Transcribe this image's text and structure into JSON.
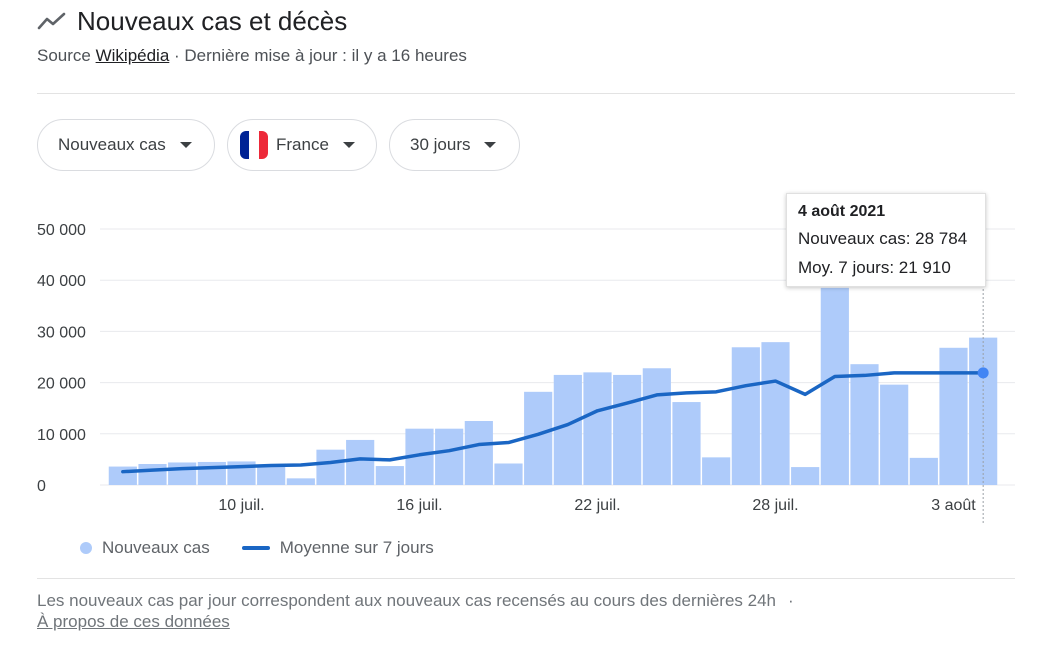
{
  "header": {
    "title": "Nouveaux cas et décès",
    "source_prefix": "Source ",
    "source_link": "Wikipédia",
    "source_suffix": " · Dernière mise à jour : il y a 16 heures"
  },
  "filters": [
    {
      "label": "Nouveaux cas"
    },
    {
      "label": "France",
      "flag_colors": [
        "#002395",
        "#ffffff",
        "#ed2939"
      ]
    },
    {
      "label": "30 jours"
    }
  ],
  "tooltip": {
    "date": "4 août 2021",
    "cases_line": "Nouveaux cas: 28 784",
    "avg_line": "Moy. 7 jours: 21 910"
  },
  "legend": {
    "cases": "Nouveaux cas",
    "average": "Moyenne sur 7 jours"
  },
  "footer": {
    "note": "Les nouveaux cas par jour correspondent aux nouveaux cas recensés au cours des dernières 24h",
    "separator": "·",
    "link": "À propos de ces données"
  },
  "colors": {
    "bar": "#aecbfa",
    "line": "#1a66c4",
    "grid": "#e8eaed",
    "selected_point": "#4285f4"
  },
  "chart_data": {
    "type": "bar",
    "ylim": [
      0,
      50000
    ],
    "yticks": [
      0,
      10000,
      20000,
      30000,
      40000,
      50000
    ],
    "ytick_labels": [
      "0",
      "10 000",
      "20 000",
      "30 000",
      "40 000",
      "50 000"
    ],
    "xtick_labels": [
      {
        "index": 4,
        "label": "10 juil."
      },
      {
        "index": 10,
        "label": "16 juil."
      },
      {
        "index": 16,
        "label": "22 juil."
      },
      {
        "index": 22,
        "label": "28 juil."
      },
      {
        "index": 28,
        "label": "3 août"
      }
    ],
    "selected_index": 29,
    "series": [
      {
        "name": "Nouveaux cas",
        "type": "bar",
        "values": [
          3600,
          4100,
          4400,
          4500,
          4600,
          3700,
          1300,
          6900,
          8800,
          3700,
          11000,
          11000,
          12500,
          4200,
          18200,
          21500,
          22000,
          21500,
          22800,
          16200,
          5400,
          26900,
          27900,
          3500,
          38500,
          23600,
          19600,
          5300,
          26800,
          28784
        ]
      },
      {
        "name": "Moyenne sur 7 jours",
        "type": "line",
        "values": [
          2600,
          2900,
          3200,
          3400,
          3600,
          3800,
          3900,
          4400,
          5100,
          4900,
          5900,
          6700,
          7900,
          8300,
          9900,
          11800,
          14500,
          16000,
          17600,
          18000,
          18200,
          19400,
          20300,
          17700,
          21200,
          21400,
          21900,
          21900,
          21900,
          21910
        ]
      }
    ]
  }
}
